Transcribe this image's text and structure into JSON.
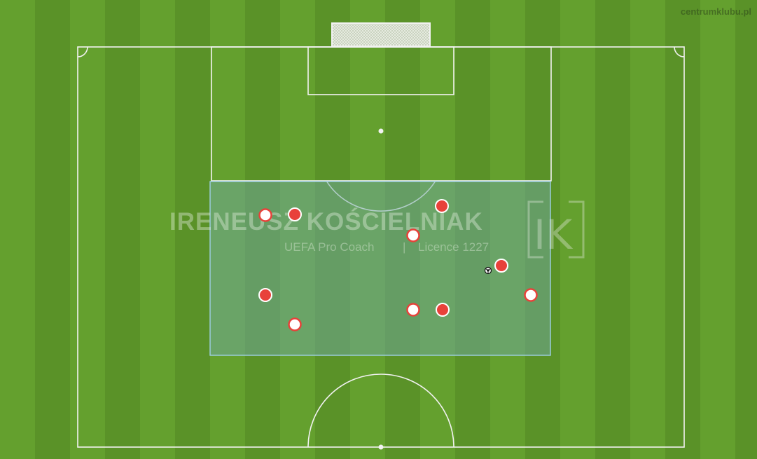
{
  "site": {
    "label": "centrumklubu.pl"
  },
  "watermark": {
    "name": "IRENEUSZ KOŚCIELNIAK",
    "subtitle_left": "UEFA Pro Coach",
    "subtitle_sep": "|",
    "subtitle_right": "Licence 1227",
    "logo_text": "IK"
  },
  "colors": {
    "grass_light": "#64a02e",
    "grass_dark": "#5a9228",
    "lines": "#f2f2f2",
    "zone_fill": "#6fa7a0",
    "zone_stroke": "#9fd0e6",
    "player_red": "#e8413a",
    "player_white": "#ffffff"
  },
  "players": {
    "red": [
      {
        "id": 1
      },
      {
        "id": 2
      },
      {
        "id": 3
      },
      {
        "id": 4
      },
      {
        "id": 5
      }
    ],
    "white": [
      {
        "id": 1
      },
      {
        "id": 2
      },
      {
        "id": 3
      },
      {
        "id": 4
      },
      {
        "id": 5
      },
      {
        "id": 6
      }
    ]
  },
  "ball": {
    "icon": "soccer-ball-icon"
  }
}
